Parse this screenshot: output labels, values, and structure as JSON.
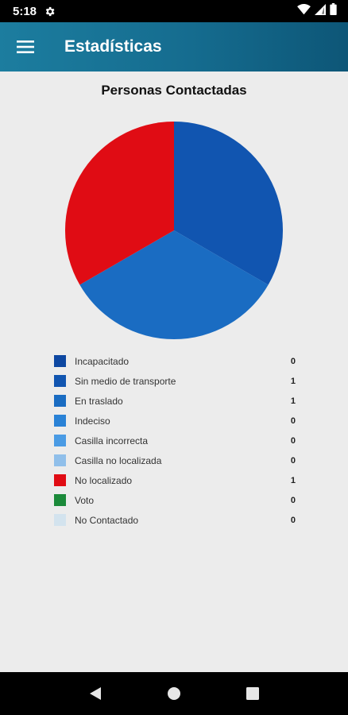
{
  "status_bar": {
    "time": "5:18"
  },
  "app_bar": {
    "title": "Estadísticas"
  },
  "chart_data": {
    "type": "pie",
    "title": "Personas Contactadas",
    "categories": [
      "Incapacitado",
      "Sin medio de transporte",
      "En traslado",
      "Indeciso",
      "Casilla incorrecta",
      "Casilla no localizada",
      "No localizado",
      "Voto",
      "No Contactado"
    ],
    "values": [
      0,
      1,
      1,
      0,
      0,
      0,
      1,
      0,
      0
    ],
    "colors": [
      "#0d47a1",
      "#1155b0",
      "#1a6cc2",
      "#2a82d6",
      "#4a9be4",
      "#90bfea",
      "#e00c14",
      "#1b8a3a",
      "#d3e3ee"
    ],
    "legend_position": "bottom"
  }
}
